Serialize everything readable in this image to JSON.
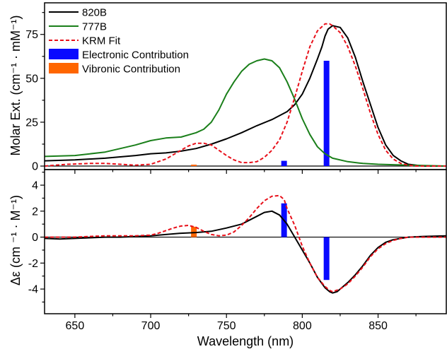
{
  "chart_data": [
    {
      "type": "line",
      "panel": "top",
      "xlabel": "",
      "ylabel": "Molar Ext. (cm⁻¹ · mM⁻¹)",
      "xlim": [
        630,
        895
      ],
      "ylim": [
        -2,
        93
      ],
      "x_ticks": [
        650,
        700,
        750,
        800,
        850
      ],
      "y_ticks": [
        0,
        25,
        50,
        75
      ],
      "legend": {
        "position": "top-left",
        "entries": [
          {
            "label": "820B",
            "kind": "line",
            "color": "#000000"
          },
          {
            "label": "777B",
            "kind": "line",
            "color": "#1a7f1a"
          },
          {
            "label": "KRM Fit",
            "kind": "dashed",
            "color": "#e8101a"
          },
          {
            "label": "Electronic Contribution",
            "kind": "box",
            "color": "#0a0aff"
          },
          {
            "label": "Vibronic Contribution",
            "kind": "box",
            "color": "#ff6600"
          }
        ]
      },
      "series": [
        {
          "name": "820B",
          "color": "#000000",
          "style": "solid",
          "x": [
            630,
            650,
            670,
            690,
            700,
            710,
            720,
            730,
            740,
            750,
            760,
            770,
            780,
            790,
            795,
            800,
            805,
            810,
            813,
            815,
            817,
            820,
            825,
            830,
            835,
            840,
            845,
            850,
            855,
            860,
            865,
            870,
            875,
            880,
            895
          ],
          "y": [
            3,
            3.5,
            4.5,
            6,
            7,
            7.5,
            8.5,
            10,
            12.5,
            15.5,
            19,
            23,
            26.5,
            31,
            35,
            41,
            50,
            61,
            68,
            74,
            78,
            80,
            79,
            73,
            62,
            48,
            35,
            22,
            12,
            6,
            3,
            1,
            0.5,
            0,
            0
          ]
        },
        {
          "name": "777B",
          "color": "#1a7f1a",
          "style": "solid",
          "x": [
            630,
            650,
            670,
            690,
            700,
            710,
            720,
            730,
            735,
            740,
            745,
            750,
            755,
            760,
            765,
            770,
            775,
            780,
            785,
            790,
            795,
            800,
            805,
            810,
            815,
            820,
            830,
            840,
            850,
            870,
            895
          ],
          "y": [
            5.5,
            6,
            8,
            12,
            14.5,
            16,
            16.5,
            19,
            21,
            25,
            32,
            41,
            48,
            54,
            58,
            60,
            61,
            60,
            56,
            48,
            38,
            27,
            18,
            11,
            7,
            4.5,
            2.5,
            1.5,
            1,
            0.5,
            0
          ]
        },
        {
          "name": "KRM Fit",
          "color": "#e8101a",
          "style": "dashed",
          "x": [
            630,
            645,
            660,
            670,
            680,
            690,
            700,
            710,
            720,
            725,
            730,
            735,
            740,
            745,
            750,
            755,
            760,
            765,
            770,
            775,
            780,
            785,
            790,
            795,
            800,
            805,
            810,
            815,
            818,
            820,
            825,
            830,
            835,
            840,
            845,
            850,
            855,
            860,
            865,
            870,
            875,
            880,
            895
          ],
          "y": [
            0,
            1,
            1.5,
            1.5,
            1,
            0.5,
            1,
            4,
            9,
            11.5,
            13,
            13,
            12,
            9,
            6,
            3.5,
            2,
            2,
            2.5,
            5,
            9,
            15,
            25,
            39,
            54,
            68,
            77,
            81,
            81,
            80,
            76,
            68,
            57,
            44,
            30,
            18,
            9,
            4,
            1.5,
            0.5,
            0,
            0,
            0
          ]
        }
      ],
      "bars": [
        {
          "x": 728.5,
          "value": 0.8,
          "color": "#ff6600",
          "kind": "vibronic"
        },
        {
          "x": 788,
          "value": 3,
          "color": "#0a0aff",
          "kind": "electronic"
        },
        {
          "x": 816,
          "value": 60,
          "color": "#0a0aff",
          "kind": "electronic"
        }
      ]
    },
    {
      "type": "line",
      "panel": "bottom",
      "xlabel": "Wavelength (nm)",
      "ylabel": "Δε (cm ⁻¹ · M⁻¹)",
      "xlim": [
        630,
        895
      ],
      "ylim": [
        -5.9,
        5.2
      ],
      "x_ticks": [
        650,
        700,
        750,
        800,
        850
      ],
      "y_ticks": [
        -4,
        -2,
        0,
        2,
        4
      ],
      "series": [
        {
          "name": "820B",
          "color": "#000000",
          "style": "solid",
          "x": [
            630,
            640,
            650,
            660,
            670,
            680,
            690,
            700,
            710,
            720,
            730,
            740,
            750,
            760,
            765,
            770,
            775,
            780,
            785,
            790,
            795,
            800,
            805,
            810,
            815,
            818,
            820,
            823,
            826,
            830,
            835,
            840,
            845,
            850,
            855,
            860,
            865,
            870,
            880,
            895
          ],
          "y": [
            -0.1,
            -0.15,
            -0.1,
            -0.05,
            0,
            0,
            0.05,
            0.1,
            0.2,
            0.3,
            0.35,
            0.45,
            0.7,
            1,
            1.3,
            1.6,
            1.9,
            2,
            1.7,
            1,
            0,
            -1,
            -2,
            -3.1,
            -3.9,
            -4.2,
            -4.3,
            -4.2,
            -3.9,
            -3.5,
            -2.9,
            -2.2,
            -1.4,
            -0.8,
            -0.4,
            -0.2,
            -0.1,
            0,
            0.05,
            0.1
          ]
        },
        {
          "name": "KRM Fit",
          "color": "#e8101a",
          "style": "dashed",
          "x": [
            630,
            650,
            660,
            670,
            680,
            690,
            700,
            705,
            710,
            715,
            720,
            725,
            730,
            735,
            740,
            745,
            750,
            755,
            760,
            765,
            770,
            775,
            780,
            785,
            788,
            790,
            795,
            800,
            805,
            810,
            815,
            818,
            820,
            825,
            830,
            835,
            840,
            845,
            850,
            855,
            860,
            865,
            870,
            880,
            895
          ],
          "y": [
            0,
            0,
            0.05,
            0.1,
            0.1,
            0.1,
            0.15,
            0.3,
            0.5,
            0.7,
            0.85,
            0.9,
            0.75,
            0.45,
            0.2,
            0.1,
            0.15,
            0.4,
            0.9,
            1.5,
            2.2,
            2.8,
            3.15,
            3.2,
            2.9,
            2.2,
            0.9,
            -0.7,
            -2,
            -3.1,
            -3.8,
            -4.1,
            -4.2,
            -4,
            -3.6,
            -3,
            -2.3,
            -1.5,
            -0.9,
            -0.5,
            -0.25,
            -0.1,
            0,
            0,
            0
          ]
        }
      ],
      "bars": [
        {
          "x": 728.5,
          "value": 0.8,
          "color": "#ff6600",
          "kind": "vibronic"
        },
        {
          "x": 788,
          "value": 2.6,
          "color": "#0a0aff",
          "kind": "electronic"
        },
        {
          "x": 816,
          "value": -3.3,
          "color": "#0a0aff",
          "kind": "electronic"
        }
      ]
    }
  ]
}
